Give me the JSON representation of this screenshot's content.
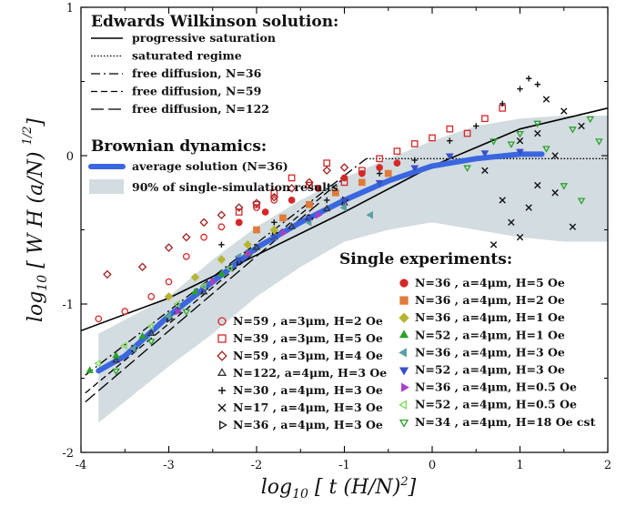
{
  "chart_data": {
    "type": "scatter",
    "xlabel": "log10 [ t (H/N)2 ]",
    "ylabel": "log10 [ W H (a/N) 1/2 ]",
    "xlabel_parts": {
      "log": "log",
      "sub": "10",
      "body": " [ t  (H/N)",
      "sup": "2",
      "close": "]"
    },
    "ylabel_parts": {
      "log": "log",
      "sub": "10",
      "body": " [ W H (a/N) ",
      "sup": "1/2",
      "close": "]"
    },
    "xlim": [
      -4,
      2
    ],
    "ylim": [
      -2,
      1
    ],
    "xticks": [
      "-4",
      "-3",
      "-2",
      "-1",
      "0",
      "1",
      "2"
    ],
    "yticks": [
      "-2",
      "-1",
      "0",
      "1"
    ],
    "grid": false,
    "theory": {
      "heading": "Edwards Wilkinson solution:",
      "lines": [
        {
          "name": "progressive saturation",
          "style": "solid"
        },
        {
          "name": "saturated regime",
          "style": "dotted"
        },
        {
          "name": "free diffusion, N=36",
          "style": "dashdot"
        },
        {
          "name": "free diffusion, N=59",
          "style": "dashed"
        },
        {
          "name": "free diffusion, N=122",
          "style": "longdash"
        }
      ],
      "progressive_saturation": {
        "x": [
          -4,
          -3,
          -2,
          -1,
          0,
          1,
          2
        ],
        "y": [
          -1.18,
          -0.96,
          -0.67,
          -0.38,
          -0.07,
          0.18,
          0.32
        ]
      },
      "saturated_regime": {
        "x": [
          -0.75,
          2
        ],
        "y": [
          -0.02,
          -0.02
        ]
      },
      "free_diffusion_36": {
        "x": [
          -3.95,
          -0.75
        ],
        "y": [
          -1.48,
          -0.02
        ]
      },
      "free_diffusion_59": {
        "x": [
          -3.95,
          -1.0
        ],
        "y": [
          -1.6,
          -0.15
        ]
      },
      "free_diffusion_122": {
        "x": [
          -3.95,
          -1.25
        ],
        "y": [
          -1.66,
          -0.3
        ]
      }
    },
    "brownian": {
      "heading": "Brownian dynamics:",
      "average_label": "average solution (N=36)",
      "band_label": "90% of single-simulation results",
      "average": {
        "x": [
          -3.8,
          -3.5,
          -3.0,
          -2.5,
          -2.0,
          -1.5,
          -1.0,
          -0.5,
          0,
          0.5,
          1.0,
          1.25
        ],
        "y": [
          -1.45,
          -1.35,
          -1.08,
          -0.85,
          -0.62,
          -0.45,
          -0.3,
          -0.17,
          -0.07,
          -0.02,
          0.01,
          0.01
        ]
      },
      "band_upper": {
        "x": [
          -3.8,
          -3.0,
          -2.5,
          -2.0,
          -1.5,
          -1.0,
          -0.5,
          0,
          0.5,
          1.0,
          1.5,
          2.0
        ],
        "y": [
          -1.2,
          -0.95,
          -0.7,
          -0.48,
          -0.3,
          -0.15,
          -0.02,
          0.1,
          0.2,
          0.25,
          0.27,
          0.27
        ]
      },
      "band_lower": {
        "x": [
          -3.8,
          -3.0,
          -2.5,
          -2.0,
          -1.5,
          -1.0,
          -0.5,
          0,
          0.5,
          1.0,
          1.5,
          2.0
        ],
        "y": [
          -1.8,
          -1.42,
          -1.2,
          -0.95,
          -0.75,
          -0.58,
          -0.5,
          -0.45,
          -0.5,
          -0.55,
          -0.58,
          -0.58
        ]
      }
    },
    "experiments_heading": "Single experiments:",
    "series": [
      {
        "name": "N=59 , a=3μm, H=2 Oe",
        "marker": "circle-open",
        "color": "#d62728",
        "x": [
          -3.8,
          -3.5,
          -3.2,
          -3.0,
          -2.8,
          -2.6,
          -2.4,
          -2.2,
          -2.0,
          -1.8
        ],
        "y": [
          -1.1,
          -1.05,
          -0.95,
          -0.85,
          -0.68,
          -0.55,
          -0.48,
          -0.45,
          -0.35,
          -0.3
        ]
      },
      {
        "name": "N=39 , a=3μm, H=5 Oe",
        "marker": "square-open",
        "color": "#d62728",
        "x": [
          -2.2,
          -2.0,
          -1.8,
          -1.6,
          -1.4,
          -1.2,
          -1.0,
          -0.8,
          -0.6,
          -0.4,
          -0.2,
          0.0,
          0.2,
          0.4,
          0.6,
          0.8
        ],
        "y": [
          -0.38,
          -0.33,
          -0.25,
          -0.15,
          -0.2,
          -0.05,
          -0.18,
          -0.1,
          -0.02,
          0.03,
          0.08,
          0.12,
          0.18,
          0.15,
          0.25,
          0.32
        ]
      },
      {
        "name": "N=59 , a=3μm, H=4 Oe",
        "marker": "diamond-open",
        "color": "#a02020",
        "x": [
          -3.7,
          -3.3,
          -3.0,
          -2.8,
          -2.6,
          -2.4,
          -2.2,
          -2.0,
          -1.8,
          -1.6,
          -1.4,
          -1.2,
          -1.0
        ],
        "y": [
          -0.8,
          -0.75,
          -0.62,
          -0.55,
          -0.45,
          -0.4,
          -0.35,
          -0.32,
          -0.28,
          -0.22,
          -0.18,
          -0.1,
          -0.08
        ]
      },
      {
        "name": "N=122, a=4μm, H=3 Oe",
        "marker": "triangle-open",
        "color": "#333333",
        "x": [
          -3.6,
          -3.2,
          -2.9,
          -2.6,
          -2.3,
          -2.0,
          -1.8,
          -1.6,
          -1.4,
          -1.2,
          -1.0
        ],
        "y": [
          -1.38,
          -1.2,
          -1.05,
          -0.92,
          -0.75,
          -0.62,
          -0.55,
          -0.48,
          -0.42,
          -0.36,
          -0.32
        ]
      },
      {
        "name": "N=30 , a=4μm, H=3 Oe",
        "marker": "plus",
        "color": "#111111",
        "x": [
          -2.4,
          -1.8,
          -1.2,
          -0.6,
          -0.2,
          0.2,
          0.5,
          0.8,
          1.0,
          1.1,
          1.2
        ],
        "y": [
          -0.6,
          -0.45,
          -0.3,
          -0.12,
          -0.03,
          0.1,
          0.2,
          0.35,
          0.45,
          0.52,
          0.48
        ]
      },
      {
        "name": "N=17 , a=4μm, H=3 Oe",
        "marker": "cross",
        "color": "#111111",
        "x": [
          0.6,
          0.8,
          0.9,
          1.0,
          1.1,
          1.2,
          1.3,
          1.4,
          1.5,
          1.6,
          1.7,
          1.0,
          1.2,
          1.4,
          0.7
        ],
        "y": [
          -0.1,
          -0.3,
          -0.45,
          -0.55,
          -0.35,
          0.15,
          0.38,
          -0.25,
          0.3,
          -0.48,
          0.2,
          0.1,
          -0.2,
          0.0,
          -0.6
        ]
      },
      {
        "name": "N=36 , a=4μm, H=3 Oe",
        "marker": "triangle-right-open",
        "color": "#111111",
        "x": [
          -3.4,
          -3.0,
          -2.6,
          -2.2,
          -1.8,
          -1.4,
          -1.0
        ],
        "y": [
          -1.3,
          -1.1,
          -0.9,
          -0.72,
          -0.52,
          -0.42,
          -0.3
        ]
      },
      {
        "name": "N=36 , a=4μm, H=5 Oe",
        "marker": "circle-filled",
        "color": "#d62728",
        "x": [
          -2.2,
          -1.9,
          -1.6,
          -1.3,
          -1.0,
          -0.8,
          -0.6,
          -0.4
        ],
        "y": [
          -0.45,
          -0.38,
          -0.3,
          -0.22,
          -0.15,
          -0.12,
          -0.08,
          -0.05
        ]
      },
      {
        "name": "N=36 , a=4μm, H=2 Oe",
        "marker": "square-filled",
        "color": "#e07b39",
        "x": [
          -2.0,
          -1.7,
          -1.4,
          -1.1,
          -0.8,
          -0.5
        ],
        "y": [
          -0.5,
          -0.42,
          -0.33,
          -0.25,
          -0.18,
          -0.12
        ]
      },
      {
        "name": "N=36 , a=4μm, H=1 Oe",
        "marker": "diamond-filled",
        "color": "#b5b531",
        "x": [
          -3.0,
          -2.7,
          -2.4,
          -2.1,
          -1.8
        ],
        "y": [
          -0.95,
          -0.82,
          -0.7,
          -0.6,
          -0.5
        ]
      },
      {
        "name": "N=52 , a=4μm, H=1 Oe",
        "marker": "triangle-filled",
        "color": "#2ca02c",
        "x": [
          -3.9,
          -3.6,
          -3.3,
          -3.0,
          -2.7,
          -2.4,
          -2.1
        ],
        "y": [
          -1.45,
          -1.35,
          -1.22,
          -1.08,
          -0.92,
          -0.8,
          -0.66
        ]
      },
      {
        "name": "N=36 , a=4μm, H=3 Oe",
        "marker": "triangle-left-filled",
        "color": "#5aa0a8",
        "x": [
          -3.4,
          -3.0,
          -2.6,
          -2.2,
          -1.8,
          -1.4,
          -1.0,
          -0.7
        ],
        "y": [
          -1.3,
          -1.08,
          -0.88,
          -0.68,
          -0.55,
          -0.45,
          -0.35,
          -0.4
        ]
      },
      {
        "name": "N=52 , a=4μm, H=3 Oe",
        "marker": "triangle-down-filled",
        "color": "#3a50c8",
        "x": [
          -2.6,
          -2.2,
          -1.8,
          -1.4,
          -1.0,
          -0.6,
          -0.2,
          0.2,
          0.6,
          1.0
        ],
        "y": [
          -0.9,
          -0.7,
          -0.55,
          -0.42,
          -0.3,
          -0.18,
          -0.08,
          0.0,
          0.02,
          0.03
        ]
      },
      {
        "name": "N=36 , a=4μm, H=0.5 Oe",
        "marker": "triangle-right-filled",
        "color": "#a83fc8",
        "x": [
          -2.9,
          -2.5,
          -2.1,
          -1.7,
          -1.3
        ],
        "y": [
          -1.05,
          -0.85,
          -0.66,
          -0.52,
          -0.4
        ]
      },
      {
        "name": "N=52 , a=4μm, H=0.5 Oe",
        "marker": "triangle-left-open",
        "color": "#7ed957",
        "x": [
          -3.8,
          -3.5,
          -3.2,
          -2.9,
          -2.6,
          -2.3
        ],
        "y": [
          -1.4,
          -1.28,
          -1.15,
          -1.0,
          -0.88,
          -0.76
        ]
      },
      {
        "name": "N=34 , a=4μm, H=18 Oe cst",
        "marker": "triangle-down-open",
        "color": "#2ca02c",
        "x": [
          -3.6,
          -3.2,
          -2.8,
          0.4,
          0.7,
          1.0,
          1.3,
          1.5,
          1.7,
          1.8,
          1.9,
          1.6,
          1.2,
          0.9
        ],
        "y": [
          -1.45,
          -1.25,
          -1.05,
          -0.08,
          0.1,
          0.15,
          0.05,
          -0.2,
          -0.3,
          0.25,
          0.1,
          0.18,
          0.22,
          0.08
        ]
      }
    ]
  }
}
